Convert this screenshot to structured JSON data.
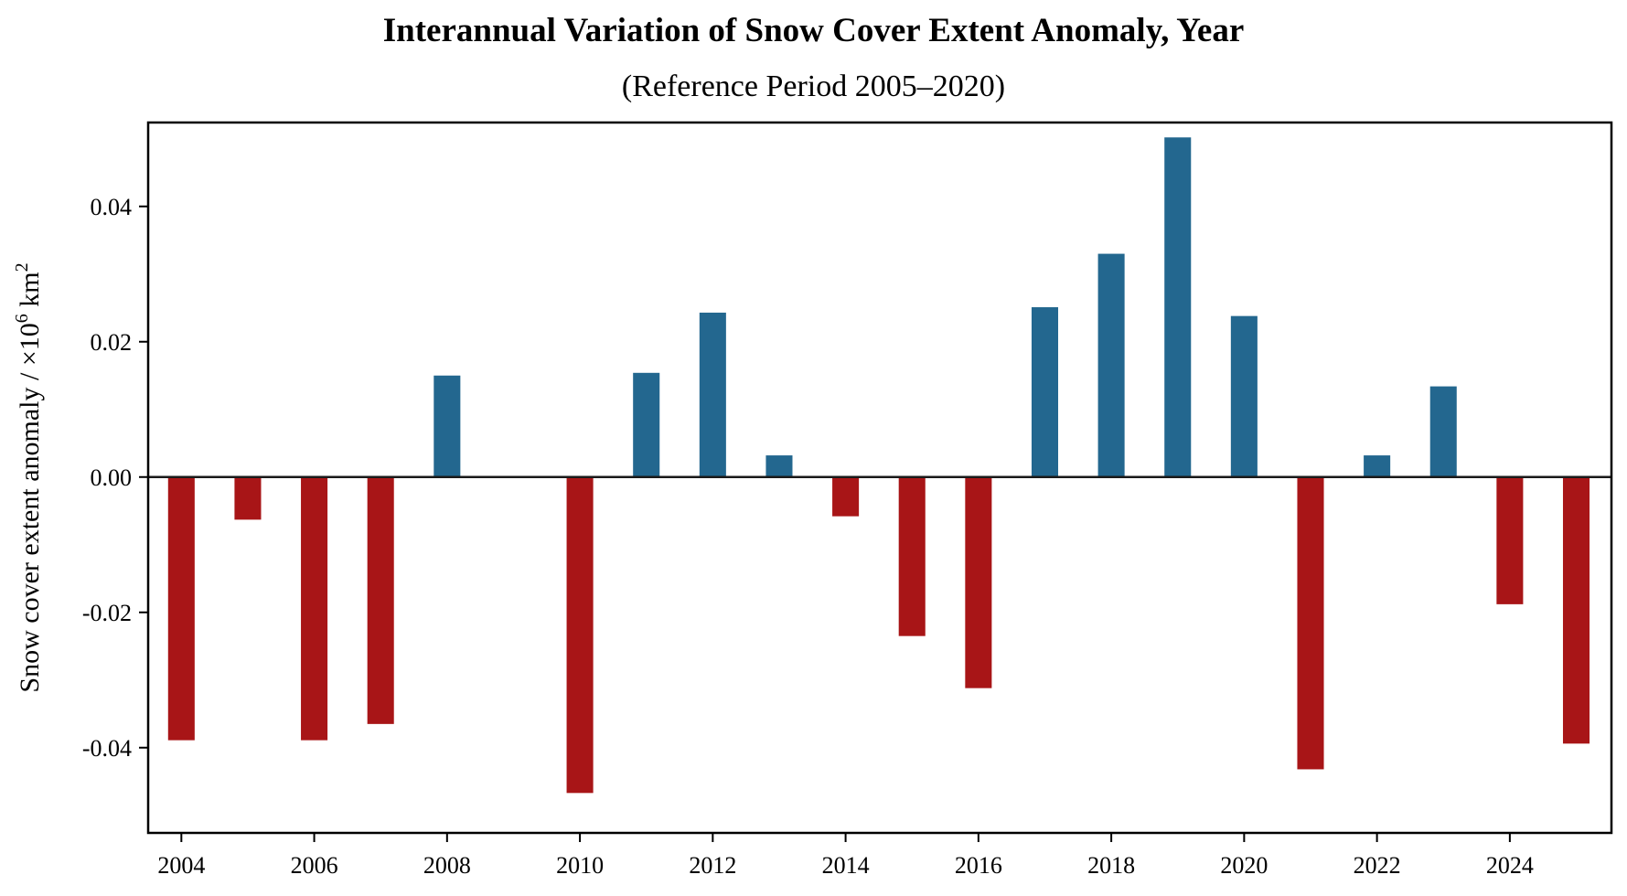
{
  "chart_data": {
    "type": "bar",
    "title": "Interannual Variation of Snow Cover Extent Anomaly, Year",
    "subtitle": "(Reference Period 2005–2020)",
    "xlabel": "",
    "ylabel": "Snow cover extent anomaly / ×10",
    "ylabel_superscript": "6",
    "ylabel_unit": " km",
    "ylabel_unit_superscript": "2",
    "categories": [
      2004,
      2005,
      2006,
      2007,
      2008,
      2009,
      2010,
      2011,
      2012,
      2013,
      2014,
      2015,
      2016,
      2017,
      2018,
      2019,
      2020,
      2021,
      2022,
      2023,
      2024,
      2025
    ],
    "values": [
      -0.0389,
      -0.0063,
      -0.0389,
      -0.0365,
      0.015,
      0.0,
      -0.0467,
      0.0154,
      0.0243,
      0.0032,
      -0.0058,
      -0.0235,
      -0.0312,
      0.0251,
      0.033,
      0.0502,
      0.0238,
      -0.0432,
      0.0032,
      0.0134,
      -0.0188,
      -0.0394
    ],
    "xlim": [
      2003.5,
      2025.53
    ],
    "ylim": [
      -0.0526,
      0.0524
    ],
    "xticks": [
      2004,
      2006,
      2008,
      2010,
      2012,
      2014,
      2016,
      2018,
      2020,
      2022,
      2024
    ],
    "xtick_labels": [
      "2004",
      "2006",
      "2008",
      "2010",
      "2012",
      "2014",
      "2016",
      "2018",
      "2020",
      "2022",
      "2024"
    ],
    "yticks": [
      -0.04,
      -0.02,
      0.0,
      0.02,
      0.04
    ],
    "ytick_labels": [
      "-0.04",
      "-0.02",
      "0.00",
      "0.02",
      "0.04"
    ],
    "bar_width_years": 0.4,
    "positive_color": "#23678f",
    "negative_color": "#a81517",
    "zero_line": true,
    "grid": false,
    "legend": "none"
  }
}
